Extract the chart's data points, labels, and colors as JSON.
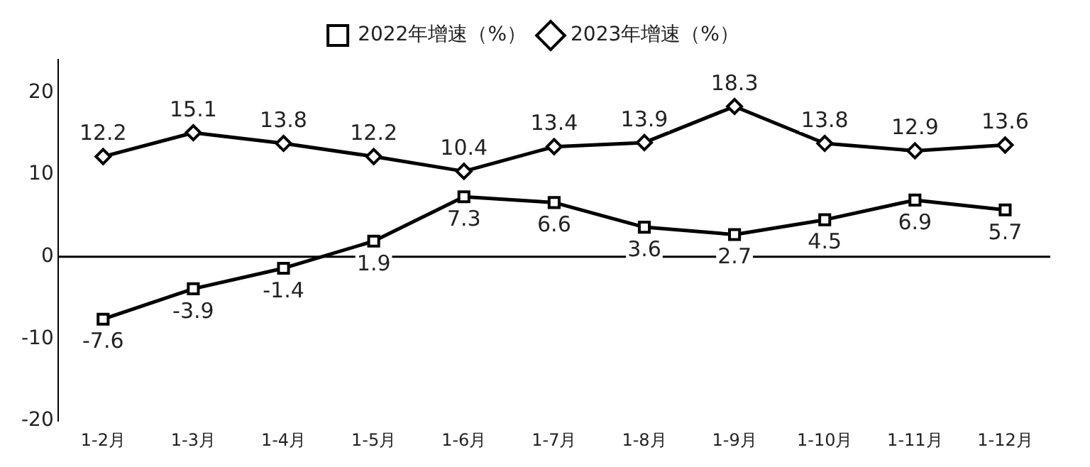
{
  "chart_data": {
    "type": "line",
    "categories": [
      "1-2月",
      "1-3月",
      "1-4月",
      "1-5月",
      "1-6月",
      "1-7月",
      "1-8月",
      "1-9月",
      "1-10月",
      "1-11月",
      "1-12月"
    ],
    "series": [
      {
        "name": "2022年增速（%）",
        "color": "#000000",
        "marker": "square",
        "values": [
          -7.6,
          -3.9,
          -1.4,
          1.9,
          7.3,
          6.6,
          3.6,
          2.7,
          4.5,
          6.9,
          5.7
        ]
      },
      {
        "name": "2023年增速（%）",
        "color": "#000000",
        "marker": "diamond",
        "values": [
          12.2,
          15.1,
          13.8,
          12.2,
          10.4,
          13.4,
          13.9,
          18.3,
          13.8,
          12.9,
          13.6
        ]
      }
    ],
    "ylim": [
      -20,
      24
    ],
    "yticks": [
      -20,
      -10,
      0,
      10,
      20
    ],
    "grid": false,
    "ref_lines": [
      {
        "axis": "y",
        "value": 0,
        "color": "#000000"
      }
    ],
    "legend": "top",
    "data_labels": true,
    "line_style": "solid"
  }
}
